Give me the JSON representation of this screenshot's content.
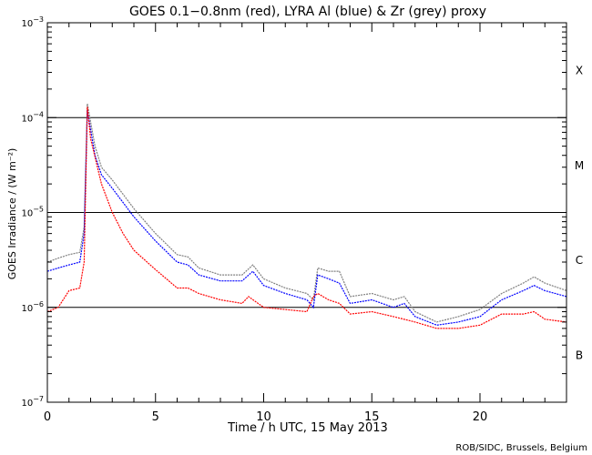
{
  "chart_data": {
    "type": "line",
    "title": "GOES 0.1−0.8nm (red), LYRA Al (blue) & Zr (grey) proxy",
    "xlabel": "Time / h UTC, 15 May 2013",
    "ylabel": "GOES Irradiance / (W m⁻²)",
    "xlim": [
      0,
      24
    ],
    "ylim": [
      1e-07,
      0.001
    ],
    "yscale": "log",
    "x_ticks": [
      "0",
      "5",
      "10",
      "15",
      "20"
    ],
    "x_tick_values": [
      0,
      5,
      10,
      15,
      20
    ],
    "y_ticks": [
      {
        "value": 0.001,
        "base": "10",
        "exp": "−3"
      },
      {
        "value": 0.0001,
        "base": "10",
        "exp": "−4"
      },
      {
        "value": 1e-05,
        "base": "10",
        "exp": "−5"
      },
      {
        "value": 1e-06,
        "base": "10",
        "exp": "−6"
      },
      {
        "value": 1e-07,
        "base": "10",
        "exp": "−7"
      }
    ],
    "reference_lines": [
      0.0001,
      1e-05,
      1e-06
    ],
    "flare_classes": [
      {
        "label": "X",
        "value": 0.00032
      },
      {
        "label": "M",
        "value": 3.2e-05
      },
      {
        "label": "C",
        "value": 3.2e-06
      },
      {
        "label": "B",
        "value": 3.2e-07
      }
    ],
    "series": [
      {
        "name": "Zr (grey) proxy",
        "color": "#808080",
        "x": [
          0,
          0.5,
          1,
          1.5,
          1.7,
          1.85,
          2.2,
          2.5,
          3,
          4,
          5,
          6,
          6.5,
          7,
          8,
          9,
          9.5,
          10,
          11,
          12,
          12.3,
          12.5,
          13,
          13.5,
          14,
          15,
          16,
          16.5,
          17,
          18,
          19,
          20,
          21,
          22,
          22.5,
          23,
          24
        ],
        "y": [
          3e-06,
          3.3e-06,
          3.6e-06,
          3.8e-06,
          7e-06,
          0.00014,
          5e-05,
          3e-05,
          2.2e-05,
          1.1e-05,
          6e-06,
          3.6e-06,
          3.4e-06,
          2.6e-06,
          2.2e-06,
          2.2e-06,
          2.8e-06,
          2e-06,
          1.6e-06,
          1.4e-06,
          1.2e-06,
          2.6e-06,
          2.4e-06,
          2.4e-06,
          1.3e-06,
          1.4e-06,
          1.2e-06,
          1.3e-06,
          9e-07,
          7e-07,
          8e-07,
          9.5e-07,
          1.4e-06,
          1.8e-06,
          2.1e-06,
          1.8e-06,
          1.5e-06
        ]
      },
      {
        "name": "LYRA Al (blue)",
        "color": "#0000ff",
        "x": [
          0,
          0.5,
          1,
          1.5,
          1.7,
          1.85,
          2.2,
          2.5,
          3,
          4,
          5,
          6,
          6.5,
          7,
          8,
          9,
          9.5,
          10,
          11,
          12,
          12.3,
          12.5,
          13,
          13.5,
          14,
          15,
          16,
          16.5,
          17,
          18,
          19,
          20,
          21,
          22,
          22.5,
          23,
          24
        ],
        "y": [
          2.4e-06,
          2.6e-06,
          2.8e-06,
          3e-06,
          6e-06,
          0.00012,
          4e-05,
          2.5e-05,
          1.8e-05,
          9e-06,
          5e-06,
          3e-06,
          2.8e-06,
          2.2e-06,
          1.9e-06,
          1.9e-06,
          2.4e-06,
          1.7e-06,
          1.4e-06,
          1.2e-06,
          1e-06,
          2.2e-06,
          2e-06,
          1.8e-06,
          1.1e-06,
          1.2e-06,
          1e-06,
          1.1e-06,
          8e-07,
          6.5e-07,
          7e-07,
          8e-07,
          1.2e-06,
          1.5e-06,
          1.7e-06,
          1.5e-06,
          1.3e-06
        ]
      },
      {
        "name": "GOES 0.1-0.8nm (red)",
        "color": "#ff0000",
        "x": [
          0,
          0.5,
          1,
          1.5,
          1.7,
          1.85,
          2,
          2.5,
          3,
          3.5,
          4,
          5,
          6,
          6.5,
          7,
          8,
          9,
          9.3,
          10,
          11,
          12,
          12.3,
          12.5,
          13,
          13.5,
          14,
          15,
          16,
          17,
          18,
          19,
          20,
          21,
          22,
          22.5,
          23,
          24
        ],
        "y": [
          9e-07,
          1e-06,
          1.5e-06,
          1.6e-06,
          3e-06,
          0.00013,
          6e-05,
          2e-05,
          1e-05,
          6e-06,
          4e-06,
          2.5e-06,
          1.6e-06,
          1.6e-06,
          1.4e-06,
          1.2e-06,
          1.1e-06,
          1.3e-06,
          1e-06,
          9.5e-07,
          9e-07,
          1.3e-06,
          1.4e-06,
          1.2e-06,
          1.1e-06,
          8.5e-07,
          9e-07,
          8e-07,
          7e-07,
          6e-07,
          6e-07,
          6.5e-07,
          8.5e-07,
          8.5e-07,
          9e-07,
          7.5e-07,
          7e-07
        ]
      }
    ]
  },
  "credit": "ROB/SIDC, Brussels, Belgium"
}
